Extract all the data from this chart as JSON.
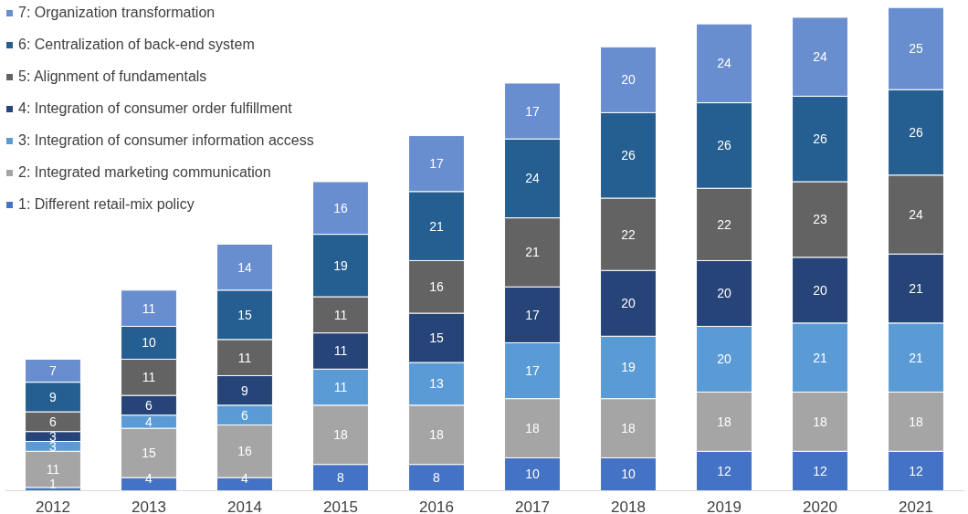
{
  "chart_data": {
    "type": "bar",
    "stacked": true,
    "data_labels": true,
    "legend": "top left",
    "grid": false,
    "categories": [
      "2012",
      "2013",
      "2014",
      "2015",
      "2016",
      "2017",
      "2018",
      "2019",
      "2020",
      "2021"
    ],
    "series": [
      {
        "name": "1: Different retail-mix policy",
        "color": "#4472c4",
        "values": [
          1,
          4,
          4,
          8,
          8,
          10,
          10,
          12,
          12,
          12
        ]
      },
      {
        "name": "2: Integrated marketing communication",
        "color": "#a5a5a5",
        "values": [
          11,
          15,
          16,
          18,
          18,
          18,
          18,
          18,
          18,
          18
        ]
      },
      {
        "name": "3: Integration of consumer information access",
        "color": "#5b9bd5",
        "values": [
          3,
          4,
          6,
          11,
          13,
          17,
          19,
          20,
          21,
          21
        ]
      },
      {
        "name": "4: Integration of consumer order fulfillment",
        "color": "#264478",
        "values": [
          3,
          6,
          9,
          11,
          15,
          17,
          20,
          20,
          20,
          21
        ]
      },
      {
        "name": "5: Alignment of fundamentals",
        "color": "#636363",
        "values": [
          6,
          11,
          11,
          11,
          16,
          21,
          22,
          22,
          23,
          24
        ]
      },
      {
        "name": "6: Centralization of back-end system",
        "color": "#255e91",
        "values": [
          9,
          10,
          15,
          19,
          21,
          24,
          26,
          26,
          26,
          26
        ]
      },
      {
        "name": "7: Organization transformation",
        "color": "#698ed0",
        "values": [
          7,
          11,
          14,
          16,
          17,
          17,
          20,
          24,
          24,
          25
        ]
      }
    ]
  }
}
